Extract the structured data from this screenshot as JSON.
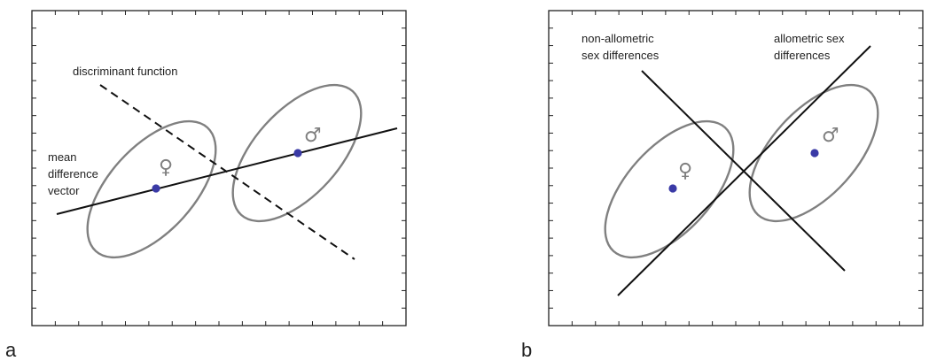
{
  "panels": [
    {
      "letter": "a",
      "labels": {
        "discriminant": "discriminant function",
        "mean_line1": "mean",
        "mean_line2": "difference",
        "mean_line3": "vector"
      },
      "female_symbol": "♀",
      "male_symbol": "♂"
    },
    {
      "letter": "b",
      "labels": {
        "nonallometric_line1": "non-allometric",
        "nonallometric_line2": "sex differences",
        "allometric_line1": "allometric sex",
        "allometric_line2": "differences"
      },
      "female_symbol": "♀",
      "male_symbol": "♂"
    }
  ],
  "colors": {
    "ellipse": "#808080",
    "mean_point": "#3a3aa6",
    "line": "#111111"
  }
}
